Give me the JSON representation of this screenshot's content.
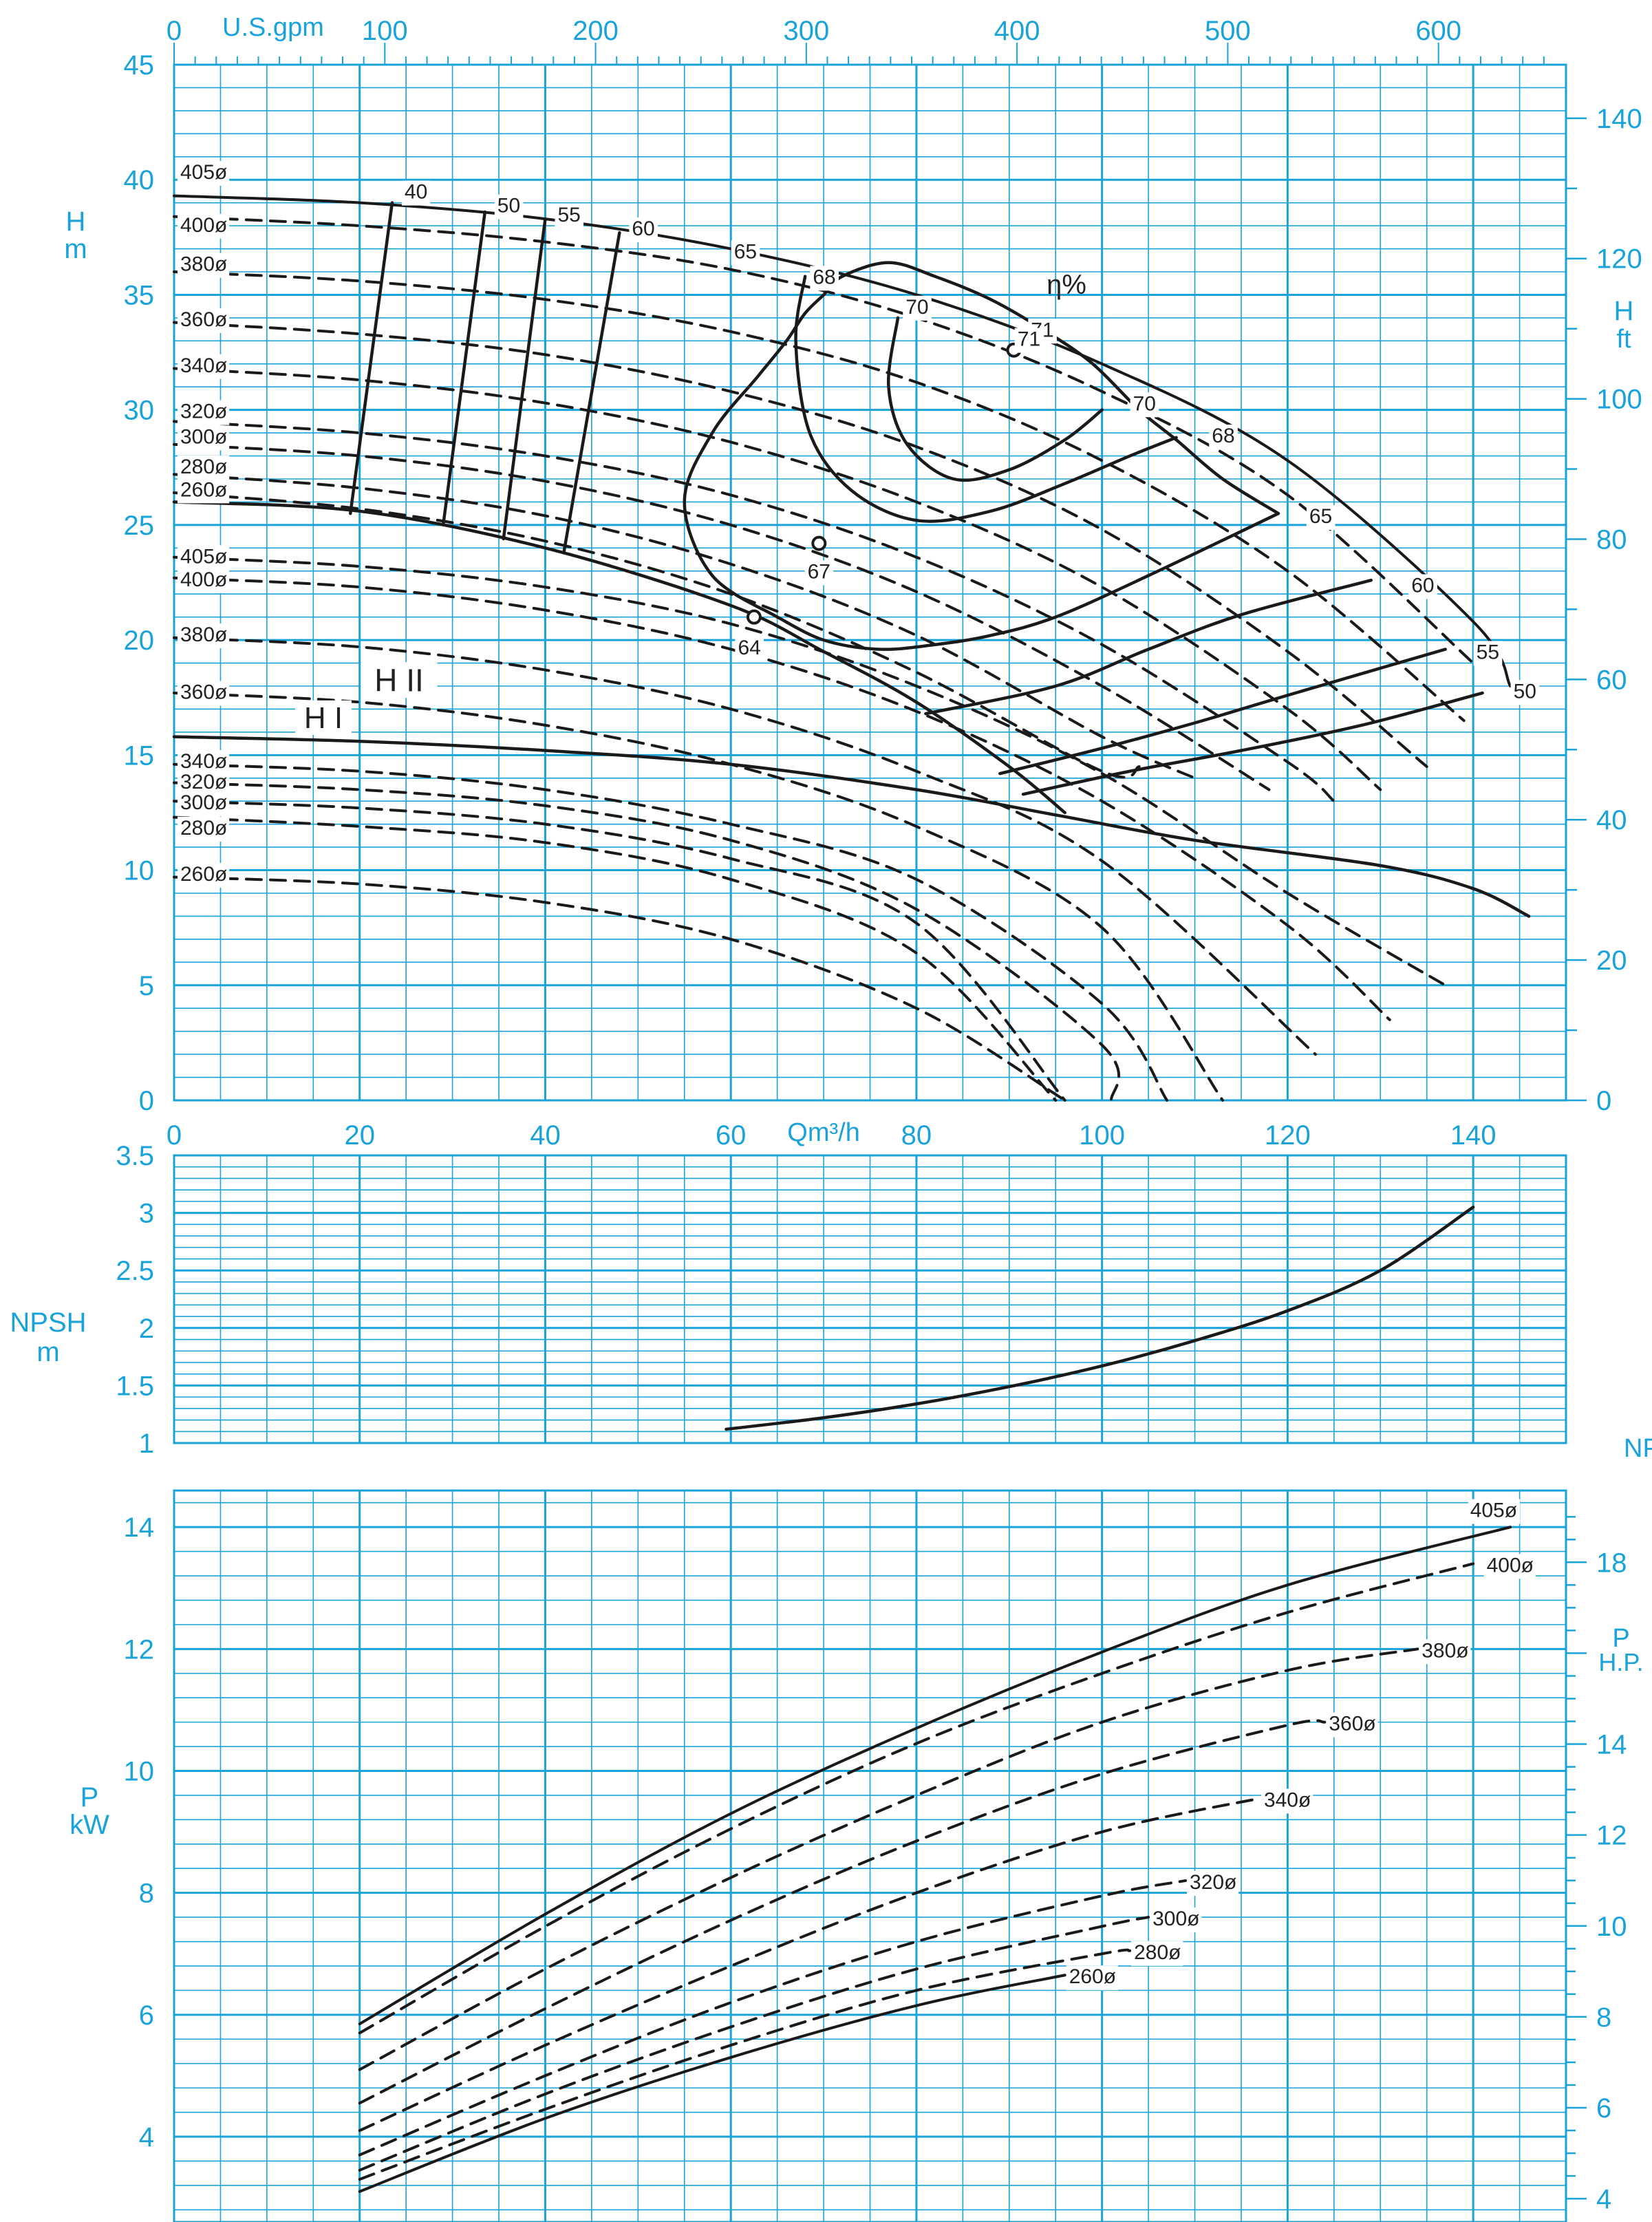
{
  "colors": {
    "grid": "#1aa3d9",
    "curve": "#1a1a1a",
    "background": "#ffffff"
  },
  "chart_data": [
    {
      "type": "line",
      "panel": "head",
      "top_axis": {
        "label": "U.S.gpm",
        "ticks": [
          0,
          100,
          200,
          300,
          400,
          500,
          600
        ]
      },
      "bottom_axis": {
        "label": "Qm³/h",
        "ticks": [
          0,
          20,
          40,
          60,
          80,
          100,
          120,
          140
        ]
      },
      "left_axis": {
        "label": "H",
        "unit": "m",
        "range": [
          0,
          45
        ],
        "ticks": [
          0,
          5,
          10,
          15,
          20,
          25,
          30,
          35,
          40,
          45
        ]
      },
      "right_axis": {
        "label": "H",
        "unit": "ft",
        "range": [
          0,
          147.6
        ],
        "ticks": [
          0,
          20,
          40,
          60,
          80,
          100,
          120,
          140
        ]
      },
      "efficiency_symbol": "η%",
      "envelope_labels": {
        "HII": "H II",
        "HI": "H I"
      },
      "HII_series": [
        {
          "name": "405ø",
          "style": "solid",
          "x": [
            0,
            20,
            40,
            60,
            80,
            100,
            120,
            140,
            144
          ],
          "y": [
            39.3,
            39.0,
            38.3,
            37.0,
            35.0,
            32.0,
            27.8,
            20.8,
            18.0
          ]
        },
        {
          "name": "400ø",
          "style": "dashed",
          "x": [
            0,
            20,
            40,
            60,
            80,
            100,
            120,
            140
          ],
          "y": [
            38.4,
            38.0,
            37.3,
            36.1,
            34.0,
            30.8,
            26.3,
            19.0
          ]
        },
        {
          "name": "380ø",
          "style": "dashed",
          "x": [
            0,
            20,
            40,
            60,
            80,
            100,
            120,
            139
          ],
          "y": [
            36.0,
            35.6,
            34.8,
            33.4,
            31.2,
            27.8,
            23.0,
            16.5
          ]
        },
        {
          "name": "360ø",
          "style": "dashed",
          "x": [
            0,
            20,
            40,
            60,
            80,
            100,
            120,
            135
          ],
          "y": [
            33.8,
            33.3,
            32.4,
            30.8,
            28.4,
            24.8,
            19.5,
            14.5
          ]
        },
        {
          "name": "340ø",
          "style": "dashed",
          "x": [
            0,
            20,
            40,
            60,
            80,
            100,
            120,
            130
          ],
          "y": [
            31.8,
            31.3,
            30.3,
            28.6,
            26.0,
            22.3,
            17.0,
            13.5
          ]
        },
        {
          "name": "320ø",
          "style": "dashed",
          "x": [
            0,
            20,
            40,
            60,
            80,
            100,
            120,
            125
          ],
          "y": [
            29.5,
            29.0,
            28.0,
            26.3,
            23.6,
            19.8,
            14.7,
            13.0
          ]
        },
        {
          "name": "300ø",
          "style": "dashed",
          "x": [
            0,
            20,
            40,
            60,
            80,
            100,
            118
          ],
          "y": [
            28.5,
            28.0,
            26.9,
            25.0,
            22.1,
            18.0,
            13.5
          ]
        },
        {
          "name": "280ø",
          "style": "dashed",
          "x": [
            0,
            20,
            40,
            60,
            80,
            100,
            110
          ],
          "y": [
            27.2,
            26.6,
            25.4,
            23.3,
            20.2,
            15.8,
            14.0
          ]
        },
        {
          "name": "260ø",
          "style": "dashed",
          "x": [
            0,
            20,
            40,
            60,
            80,
            100,
            104
          ],
          "y": [
            26.4,
            25.7,
            24.3,
            22.0,
            18.6,
            14.3,
            14.5
          ]
        }
      ],
      "HII_lower_boundary": {
        "style": "solid",
        "x": [
          0,
          20,
          40,
          60,
          70,
          80,
          90,
          96
        ],
        "y": [
          26.0,
          25.6,
          24.0,
          21.5,
          19.5,
          17.3,
          14.5,
          12.5
        ]
      },
      "HI_series": [
        {
          "name": "405ø",
          "style": "dashed",
          "x": [
            0,
            20,
            40,
            60,
            80,
            100,
            120,
            137
          ],
          "y": [
            23.6,
            23.2,
            22.3,
            20.7,
            18.0,
            14.2,
            9.0,
            5.0
          ]
        },
        {
          "name": "400ø",
          "style": "dashed",
          "x": [
            0,
            20,
            40,
            60,
            80,
            100,
            120,
            131
          ],
          "y": [
            22.7,
            22.3,
            21.3,
            19.6,
            16.9,
            13.0,
            7.6,
            3.5
          ]
        },
        {
          "name": "380ø",
          "style": "dashed",
          "x": [
            0,
            20,
            40,
            60,
            80,
            100,
            123
          ],
          "y": [
            20.1,
            19.7,
            18.7,
            17.0,
            14.3,
            10.4,
            2.0
          ]
        },
        {
          "name": "360ø",
          "style": "dashed",
          "x": [
            0,
            20,
            40,
            60,
            80,
            100,
            113
          ],
          "y": [
            17.7,
            17.3,
            16.3,
            14.6,
            11.9,
            7.5,
            0
          ]
        },
        {
          "name": "340ø",
          "style": "dashed",
          "x": [
            0,
            20,
            40,
            60,
            80,
            100,
            107
          ],
          "y": [
            14.6,
            14.3,
            13.5,
            12.0,
            9.6,
            4.2,
            0
          ]
        },
        {
          "name": "320ø",
          "style": "dashed",
          "x": [
            0,
            20,
            40,
            60,
            80,
            100,
            101
          ],
          "y": [
            13.8,
            13.5,
            12.8,
            11.3,
            8.3,
            2.4,
            0
          ]
        },
        {
          "name": "300ø",
          "style": "dashed",
          "x": [
            0,
            20,
            40,
            60,
            80,
            96
          ],
          "y": [
            13.0,
            12.7,
            12.0,
            10.5,
            7.7,
            0
          ]
        },
        {
          "name": "280ø",
          "style": "dashed",
          "x": [
            0,
            20,
            40,
            60,
            80,
            95
          ],
          "y": [
            12.3,
            11.9,
            11.2,
            9.6,
            6.4,
            0
          ]
        },
        {
          "name": "260ø",
          "style": "dashed",
          "x": [
            0,
            20,
            40,
            60,
            80,
            96
          ],
          "y": [
            9.7,
            9.4,
            8.6,
            7.0,
            4.0,
            0
          ]
        }
      ],
      "HI_boundary": {
        "style": "solid",
        "x": [
          0,
          20,
          40,
          60,
          80,
          95,
          110,
          130,
          140,
          146
        ],
        "y": [
          15.8,
          15.6,
          15.2,
          14.6,
          13.5,
          12.4,
          11.3,
          10.2,
          9.2,
          8.0
        ]
      },
      "efficiency_lines": [
        {
          "name": "40",
          "x": [
            19,
            23.5
          ],
          "y": [
            25.5,
            39.0
          ]
        },
        {
          "name": "50",
          "x": [
            29,
            33.5
          ],
          "y": [
            25.0,
            38.6
          ]
        },
        {
          "name": "55",
          "x": [
            35.5,
            40
          ],
          "y": [
            24.4,
            38.3
          ]
        },
        {
          "name": "60",
          "x": [
            42,
            48
          ],
          "y": [
            23.8,
            37.7
          ]
        },
        {
          "name": "65",
          "x": [
            65,
            58,
            55,
            58,
            63,
            66,
            68,
            70,
            72,
            77,
            82,
            88,
            94,
            99,
            104,
            108,
            113,
            119
          ],
          "y": [
            21.0,
            22.8,
            26.0,
            29.0,
            31.5,
            33.0,
            34.2,
            35.0,
            35.8,
            36.4,
            35.8,
            34.8,
            33.4,
            32.0,
            30.0,
            28.7,
            27.0,
            25.5
          ]
        },
        {
          "name": "68",
          "x": [
            68,
            67,
            68.5,
            73,
            80,
            88,
            96,
            103,
            108
          ],
          "y": [
            35.8,
            33.0,
            29.0,
            26.5,
            25.2,
            25.6,
            26.8,
            28.0,
            28.8
          ]
        },
        {
          "name": "70",
          "x": [
            78,
            77,
            79,
            84,
            90,
            96,
            100
          ],
          "y": [
            34.0,
            31.0,
            28.5,
            27.0,
            27.4,
            28.7,
            30.0
          ]
        },
        {
          "name": "65",
          "x": [
            65,
            70,
            76,
            82,
            88,
            95,
            105,
            119
          ],
          "y": [
            21.0,
            20.0,
            19.6,
            19.8,
            20.2,
            21.0,
            22.8,
            25.5
          ]
        },
        {
          "name": "60",
          "x": [
            81,
            95,
            105,
            115,
            129
          ],
          "y": [
            16.8,
            18.0,
            19.6,
            21.1,
            22.6
          ]
        },
        {
          "name": "55",
          "x": [
            89,
            100,
            110,
            120,
            137
          ],
          "y": [
            14.2,
            15.3,
            16.4,
            17.6,
            19.6
          ]
        },
        {
          "name": "50",
          "x": [
            91.5,
            103,
            115,
            128,
            141
          ],
          "y": [
            13.3,
            14.3,
            15.2,
            16.3,
            17.7
          ]
        }
      ],
      "efficiency_labels": [
        "40",
        "50",
        "55",
        "60",
        "65",
        "68",
        "70",
        "71",
        "70",
        "68",
        "65",
        "60",
        "55",
        "50"
      ],
      "marked_points": [
        {
          "name": "71",
          "x": 90.5,
          "y": 32.6
        },
        {
          "name": "67",
          "x": 69.5,
          "y": 24.2
        },
        {
          "name": "64",
          "x": 62.5,
          "y": 21.0
        }
      ],
      "size_labels_upper": [
        "405ø",
        "400ø",
        "380ø",
        "360ø",
        "340ø",
        "320ø",
        "300ø",
        "280ø",
        "260ø"
      ],
      "size_labels_lower": [
        "405ø",
        "400ø",
        "380ø",
        "360ø",
        "340ø",
        "320ø",
        "300ø",
        "280ø",
        "260ø"
      ]
    },
    {
      "type": "line",
      "panel": "npsh",
      "left_axis": {
        "label": "NPSH",
        "unit": "m",
        "range": [
          1,
          3.5
        ],
        "ticks": [
          1,
          1.5,
          2,
          2.5,
          3,
          3.5
        ]
      },
      "right_axis": {
        "label": "NP"
      },
      "series": [
        {
          "style": "solid",
          "x": [
            59.5,
            70,
            80,
            90,
            100,
            110,
            120,
            130,
            140
          ],
          "y": [
            1.12,
            1.22,
            1.34,
            1.49,
            1.67,
            1.89,
            2.15,
            2.5,
            3.05
          ]
        }
      ]
    },
    {
      "type": "line",
      "panel": "power",
      "left_axis": {
        "label": "P",
        "unit": "kW",
        "range": [
          2.6,
          14.6
        ],
        "ticks": [
          4,
          6,
          8,
          10,
          12,
          14
        ]
      },
      "right_axis": {
        "label": "P",
        "unit": "H.P.",
        "ticks": [
          4,
          6,
          8,
          10,
          12,
          14,
          18
        ]
      },
      "series": [
        {
          "name": "405ø",
          "style": "solid",
          "x": [
            20,
            40,
            60,
            80,
            100,
            120,
            144
          ],
          "y": [
            5.85,
            7.65,
            9.3,
            10.7,
            11.95,
            13.05,
            14.0
          ]
        },
        {
          "name": "400ø",
          "style": "dashed",
          "x": [
            20,
            40,
            60,
            80,
            100,
            120,
            140
          ],
          "y": [
            5.7,
            7.45,
            9.05,
            10.45,
            11.6,
            12.6,
            13.4
          ]
        },
        {
          "name": "380ø",
          "style": "dashed",
          "x": [
            20,
            40,
            60,
            80,
            100,
            120,
            134
          ],
          "y": [
            5.1,
            6.75,
            8.25,
            9.6,
            10.8,
            11.65,
            12.0
          ]
        },
        {
          "name": "360ø",
          "style": "dashed",
          "x": [
            20,
            40,
            60,
            80,
            100,
            120,
            124
          ],
          "y": [
            4.55,
            6.1,
            7.55,
            8.85,
            9.95,
            10.75,
            10.8
          ]
        },
        {
          "name": "340ø",
          "style": "dashed",
          "x": [
            20,
            40,
            60,
            80,
            100,
            117
          ],
          "y": [
            4.1,
            5.5,
            6.8,
            8.0,
            9.0,
            9.55
          ]
        },
        {
          "name": "320ø",
          "style": "dashed",
          "x": [
            20,
            40,
            60,
            80,
            100,
            109
          ],
          "y": [
            3.7,
            5.0,
            6.2,
            7.2,
            7.95,
            8.2
          ]
        },
        {
          "name": "300ø",
          "style": "dashed",
          "x": [
            20,
            40,
            60,
            80,
            100,
            105
          ],
          "y": [
            3.45,
            4.7,
            5.8,
            6.75,
            7.45,
            7.6
          ]
        },
        {
          "name": "280ø",
          "style": "dashed",
          "x": [
            20,
            40,
            60,
            80,
            100,
            103
          ],
          "y": [
            3.3,
            4.45,
            5.5,
            6.4,
            7.0,
            7.05
          ]
        },
        {
          "name": "260ø",
          "style": "solid",
          "x": [
            20,
            40,
            60,
            80,
            96
          ],
          "y": [
            3.1,
            4.3,
            5.3,
            6.15,
            6.65
          ]
        }
      ]
    }
  ]
}
